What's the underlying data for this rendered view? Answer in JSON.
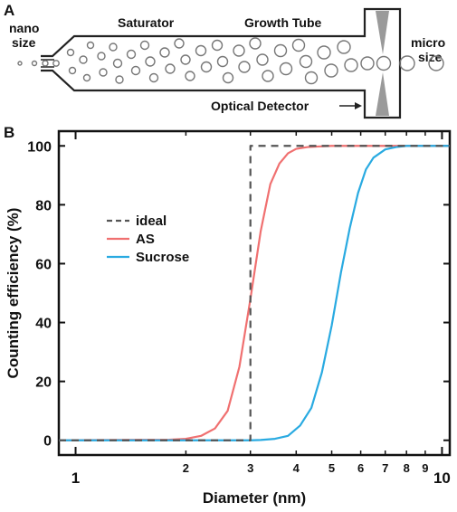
{
  "panel_a": {
    "label": "A",
    "nano_label": [
      "nano",
      "size"
    ],
    "micro_label": [
      "micro",
      "size"
    ],
    "saturator_label": "Saturator",
    "growth_tube_label": "Growth Tube",
    "detector_label": "Optical Detector"
  },
  "panel_b": {
    "label": "B"
  },
  "chart_data": {
    "type": "line",
    "xlabel": "Diameter (nm)",
    "ylabel": "Counting efficiency (%)",
    "xscale": "log",
    "xlim": [
      0.9,
      10.5
    ],
    "ylim": [
      -5,
      105
    ],
    "xticks_major": [
      1,
      10
    ],
    "xticks_minor": [
      2,
      3,
      4,
      5,
      6,
      7,
      8,
      9
    ],
    "yticks": [
      0,
      20,
      40,
      60,
      80,
      100
    ],
    "legend_position": "left-middle",
    "series": [
      {
        "name": "ideal",
        "style": "dashed",
        "color": "#555555",
        "x": [
          0.9,
          3.0,
          3.0,
          10.5
        ],
        "y": [
          0,
          0,
          100,
          100
        ]
      },
      {
        "name": "AS",
        "style": "solid",
        "color": "#f07070",
        "x": [
          0.9,
          1.8,
          2.0,
          2.2,
          2.4,
          2.6,
          2.8,
          3.0,
          3.2,
          3.4,
          3.6,
          3.8,
          4.0,
          4.3,
          4.6,
          5.0,
          10.5
        ],
        "y": [
          0,
          0.2,
          0.5,
          1.5,
          4,
          10,
          25,
          48,
          71,
          87,
          94,
          97.5,
          99,
          99.6,
          99.8,
          100,
          100
        ]
      },
      {
        "name": "Sucrose",
        "style": "solid",
        "color": "#29aae1",
        "x": [
          0.9,
          3.0,
          3.2,
          3.5,
          3.8,
          4.1,
          4.4,
          4.7,
          5.0,
          5.3,
          5.6,
          5.9,
          6.2,
          6.5,
          7.0,
          7.5,
          8.0,
          10.5
        ],
        "y": [
          0,
          0,
          0.1,
          0.5,
          1.5,
          5,
          11,
          23,
          39,
          57,
          72,
          84,
          92,
          96,
          98.8,
          99.6,
          100,
          100
        ]
      }
    ]
  }
}
